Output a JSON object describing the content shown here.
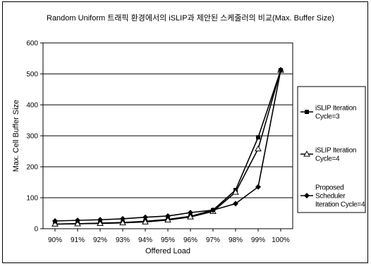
{
  "chart_data": {
    "type": "line",
    "title": "Random Uniform 트래픽 환경에서의 iSLIP과 제안된 스케줄러의 비교(Max. Buffer Size)",
    "xlabel": "Offered Load",
    "ylabel": "Max. Cell Buffer Size",
    "categories": [
      "90%",
      "91%",
      "92%",
      "93%",
      "94%",
      "95%",
      "96%",
      "97%",
      "98%",
      "99%",
      "100%"
    ],
    "ylim": [
      0,
      600
    ],
    "yticks": [
      0,
      100,
      200,
      300,
      400,
      500,
      600
    ],
    "grid": "horizontal",
    "legend_position": "right",
    "series": [
      {
        "name_lines": [
          "iSLIP Iteration",
          "Cycle=3"
        ],
        "marker": "square",
        "values": [
          15,
          16,
          18,
          20,
          24,
          30,
          40,
          60,
          125,
          295,
          512
        ]
      },
      {
        "name_lines": [
          "iSLIP Iteration",
          "Cycle=4"
        ],
        "marker": "triangle",
        "values": [
          15,
          16,
          17,
          19,
          22,
          28,
          38,
          56,
          118,
          258,
          512
        ]
      },
      {
        "name_lines": [
          "Proposed",
          "Scheduler",
          "Iteration Cycle=4"
        ],
        "marker": "diamond",
        "values": [
          25,
          27,
          29,
          32,
          37,
          41,
          52,
          60,
          81,
          135,
          512
        ]
      }
    ]
  }
}
